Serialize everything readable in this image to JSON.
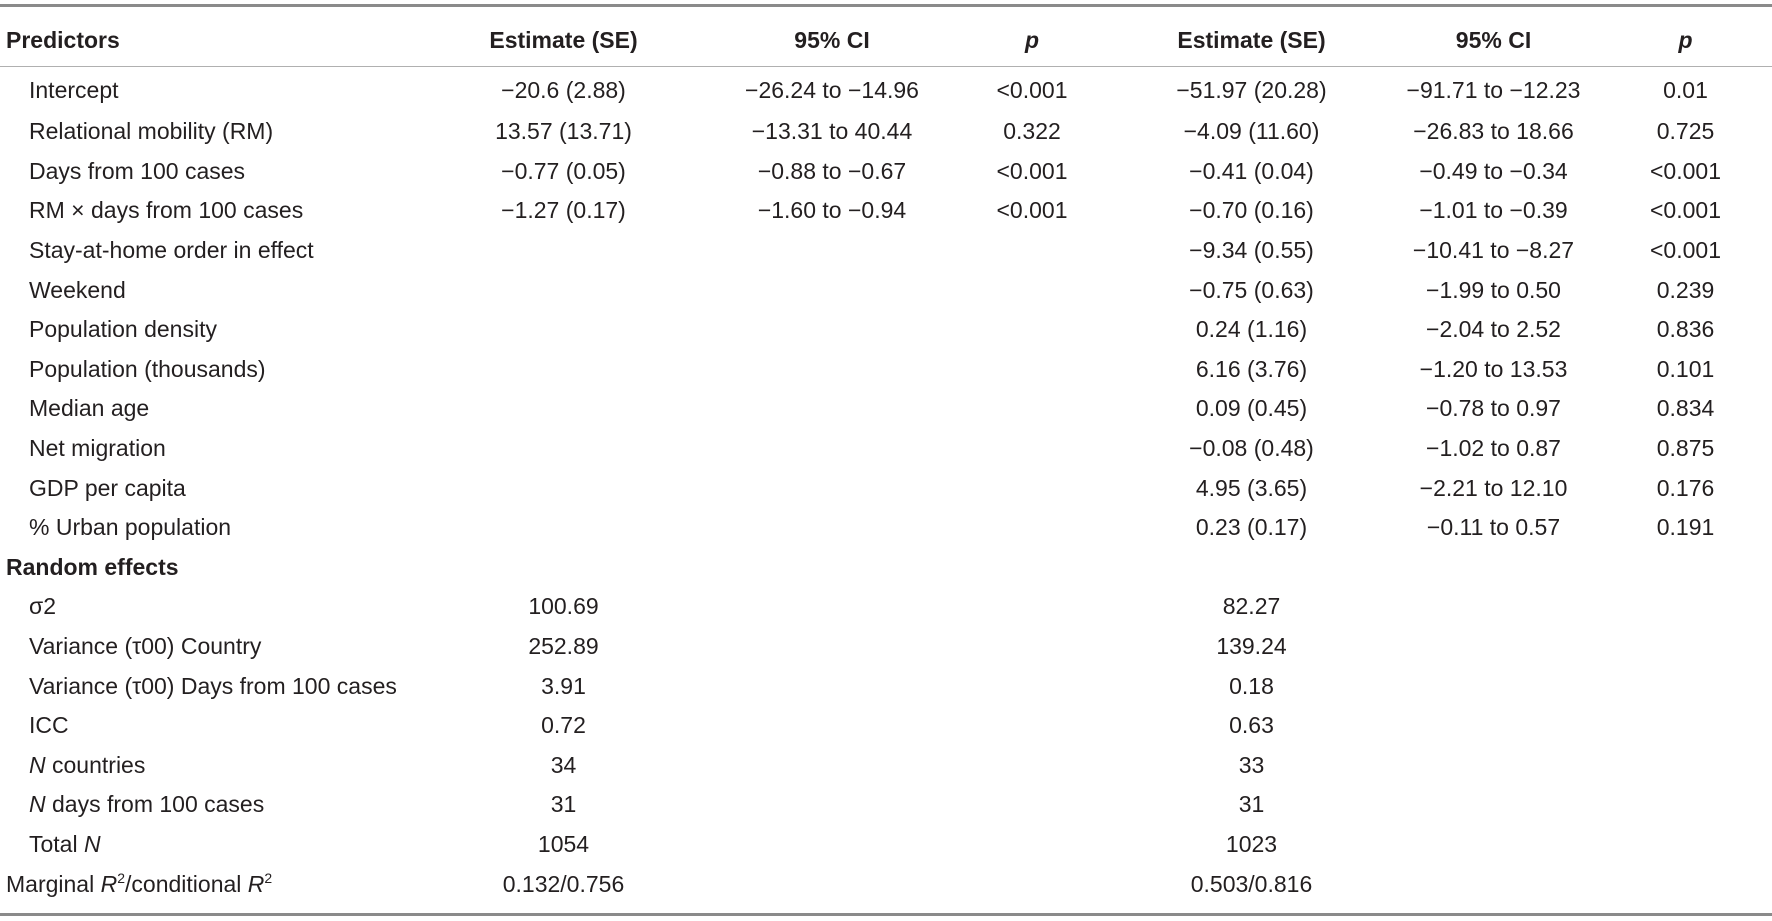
{
  "table": {
    "headers": [
      "Predictors",
      "Estimate (SE)",
      "95% CI",
      "p",
      "Estimate (SE)",
      "95% CI",
      "p"
    ],
    "rows": [
      [
        "Intercept",
        "−20.6 (2.88)",
        "−26.24 to −14.96",
        "<0.001",
        "−51.97 (20.28)",
        "−91.71 to −12.23",
        "0.01"
      ],
      [
        "Relational mobility (RM)",
        "13.57 (13.71)",
        "−13.31 to 40.44",
        "0.322",
        "−4.09 (11.60)",
        "−26.83 to 18.66",
        "0.725"
      ],
      [
        "Days from 100 cases",
        "−0.77 (0.05)",
        "−0.88 to −0.67",
        "<0.001",
        "−0.41 (0.04)",
        "−0.49 to −0.34",
        "<0.001"
      ],
      [
        "RM × days from 100 cases",
        "−1.27 (0.17)",
        "−1.60 to −0.94",
        "<0.001",
        "−0.70 (0.16)",
        "−1.01 to −0.39",
        "<0.001"
      ],
      [
        "Stay-at-home order in effect",
        "",
        "",
        "",
        "−9.34 (0.55)",
        "−10.41 to −8.27",
        "<0.001"
      ],
      [
        "Weekend",
        "",
        "",
        "",
        "−0.75 (0.63)",
        "−1.99 to 0.50",
        "0.239"
      ],
      [
        "Population density",
        "",
        "",
        "",
        "0.24 (1.16)",
        "−2.04 to 2.52",
        "0.836"
      ],
      [
        "Population (thousands)",
        "",
        "",
        "",
        "6.16 (3.76)",
        "−1.20 to 13.53",
        "0.101"
      ],
      [
        "Median age",
        "",
        "",
        "",
        "0.09 (0.45)",
        "−0.78 to 0.97",
        "0.834"
      ],
      [
        "Net migration",
        "",
        "",
        "",
        "−0.08 (0.48)",
        "−1.02 to 0.87",
        "0.875"
      ],
      [
        "GDP per capita",
        "",
        "",
        "",
        "4.95 (3.65)",
        "−2.21 to 12.10",
        "0.176"
      ],
      [
        "% Urban population",
        "",
        "",
        "",
        "0.23 (0.17)",
        "−0.11 to 0.57",
        "0.191"
      ]
    ],
    "random_effects_label": "Random effects",
    "random_rows": [
      [
        "σ2",
        "100.69",
        "82.27"
      ],
      [
        "Variance (τ00) Country",
        "252.89",
        "139.24"
      ],
      [
        "Variance (τ00) Days from 100 cases",
        "3.91",
        "0.18"
      ],
      [
        "ICC",
        "0.72",
        "0.63"
      ]
    ],
    "n_countries": {
      "italic": "N",
      "rest": " countries",
      "m1": "34",
      "m2": "33"
    },
    "n_days": {
      "italic": "N",
      "rest": " days from 100 cases",
      "m1": "31",
      "m2": "31"
    },
    "total_n": {
      "lead": "Total ",
      "italic": "N",
      "m1": "1054",
      "m2": "1023"
    },
    "r2": {
      "marginal": "Marginal ",
      "r": "R",
      "sup": "2",
      "slash_conditional": "/conditional ",
      "m1": "0.132/0.756",
      "m2": "0.503/0.816"
    }
  }
}
